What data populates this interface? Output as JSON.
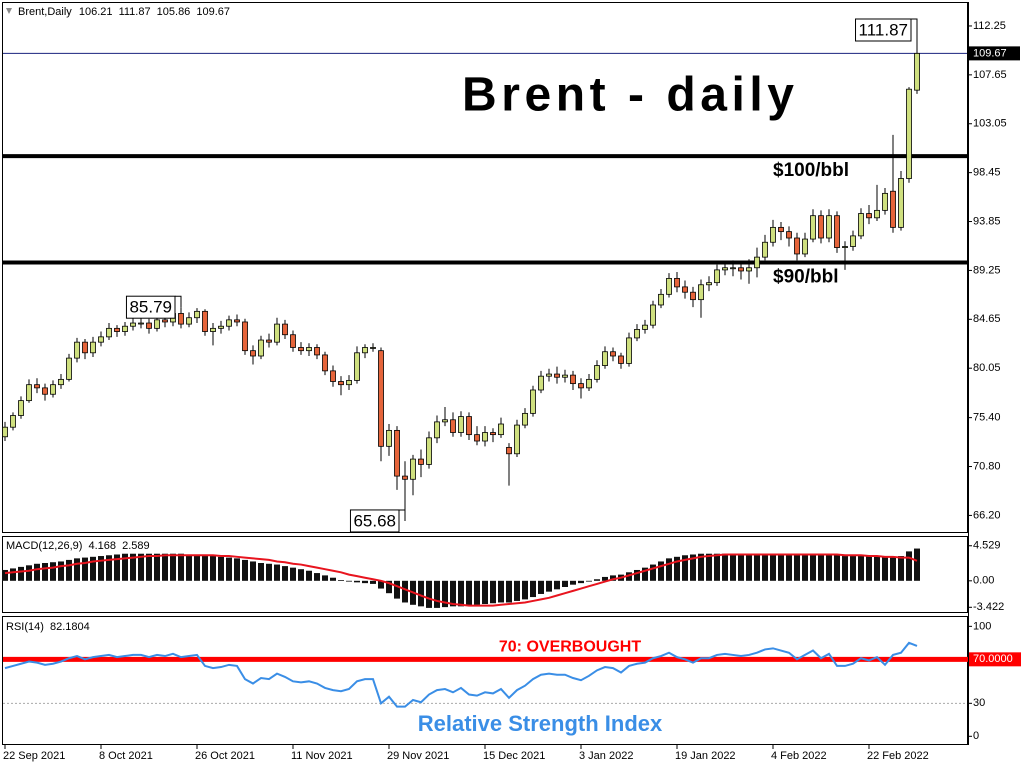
{
  "chart_data": [
    {
      "type": "candlestick",
      "title": "Brent - daily",
      "symbol": "Brent,Daily",
      "categories": [
        "22 Sep 2021",
        null,
        null,
        null,
        null,
        null,
        null,
        null,
        null,
        null,
        null,
        null,
        "8 Oct 2021",
        null,
        null,
        null,
        null,
        null,
        null,
        null,
        null,
        null,
        null,
        null,
        "26 Oct 2021",
        null,
        null,
        null,
        null,
        null,
        null,
        null,
        null,
        null,
        null,
        null,
        "11 Nov 2021",
        null,
        null,
        null,
        null,
        null,
        null,
        null,
        null,
        null,
        null,
        null,
        "29 Nov 2021",
        null,
        null,
        null,
        null,
        null,
        null,
        null,
        null,
        null,
        null,
        null,
        "15 Dec 2021",
        null,
        null,
        null,
        null,
        null,
        null,
        null,
        null,
        null,
        null,
        null,
        "3 Jan 2022",
        null,
        null,
        null,
        null,
        null,
        null,
        null,
        null,
        null,
        null,
        null,
        "19 Jan 2022",
        null,
        null,
        null,
        null,
        null,
        null,
        null,
        null,
        null,
        null,
        null,
        "4 Feb 2022",
        null,
        null,
        null,
        null,
        null,
        null,
        null,
        null,
        null,
        null,
        null,
        "22 Feb 2022",
        null,
        null,
        null,
        null,
        null,
        null
      ],
      "ohlc": [
        [
          73.6,
          75.0,
          73.2,
          74.5
        ],
        [
          74.5,
          75.9,
          74.2,
          75.6
        ],
        [
          75.6,
          77.4,
          75.3,
          77.0
        ],
        [
          77.0,
          79.0,
          76.8,
          78.5
        ],
        [
          78.5,
          79.1,
          77.7,
          78.2
        ],
        [
          78.2,
          78.6,
          77.0,
          77.6
        ],
        [
          77.6,
          78.9,
          77.3,
          78.5
        ],
        [
          78.5,
          79.5,
          78.1,
          79.0
        ],
        [
          79.0,
          81.4,
          78.8,
          81.0
        ],
        [
          81.0,
          82.9,
          80.6,
          82.5
        ],
        [
          82.5,
          82.8,
          80.9,
          81.5
        ],
        [
          81.5,
          83.0,
          81.1,
          82.5
        ],
        [
          82.5,
          83.5,
          82.1,
          83.0
        ],
        [
          83.0,
          84.3,
          82.7,
          83.8
        ],
        [
          83.8,
          84.1,
          83.0,
          83.5
        ],
        [
          83.5,
          84.4,
          83.1,
          84.0
        ],
        [
          84.0,
          84.8,
          83.6,
          84.3
        ],
        [
          84.3,
          84.9,
          83.8,
          84.3
        ],
        [
          84.3,
          84.7,
          83.3,
          83.8
        ],
        [
          83.8,
          85.1,
          83.5,
          84.6
        ],
        [
          84.6,
          85.0,
          83.9,
          84.4
        ],
        [
          84.4,
          85.6,
          84.0,
          85.2
        ],
        [
          85.2,
          85.79,
          83.8,
          84.2
        ],
        [
          84.2,
          85.3,
          83.9,
          84.8
        ],
        [
          84.8,
          85.7,
          84.3,
          85.4
        ],
        [
          85.4,
          85.6,
          83.1,
          83.5
        ],
        [
          83.5,
          84.3,
          82.2,
          83.8
        ],
        [
          83.8,
          84.5,
          83.3,
          84.0
        ],
        [
          84.0,
          85.0,
          83.6,
          84.6
        ],
        [
          84.6,
          85.1,
          84.0,
          84.4
        ],
        [
          84.4,
          84.7,
          81.3,
          81.7
        ],
        [
          81.7,
          82.2,
          80.4,
          81.2
        ],
        [
          81.2,
          83.1,
          80.9,
          82.7
        ],
        [
          82.7,
          83.3,
          82.0,
          82.5
        ],
        [
          82.5,
          84.8,
          82.2,
          84.2
        ],
        [
          84.2,
          84.6,
          82.8,
          83.2
        ],
        [
          83.2,
          83.6,
          81.6,
          82.0
        ],
        [
          82.0,
          82.5,
          81.3,
          81.7
        ],
        [
          81.7,
          82.4,
          81.2,
          82.0
        ],
        [
          82.0,
          82.3,
          80.9,
          81.3
        ],
        [
          81.3,
          81.6,
          79.4,
          79.8
        ],
        [
          79.8,
          80.3,
          78.3,
          78.8
        ],
        [
          78.8,
          79.3,
          77.5,
          78.5
        ],
        [
          78.5,
          79.4,
          78.0,
          78.9
        ],
        [
          78.9,
          82.1,
          78.6,
          81.5
        ],
        [
          81.5,
          82.3,
          81.0,
          82.0
        ],
        [
          82.0,
          82.4,
          81.6,
          82.0
        ],
        [
          81.7,
          82.0,
          71.3,
          72.7
        ],
        [
          72.7,
          74.8,
          71.8,
          74.2
        ],
        [
          74.2,
          74.6,
          68.6,
          69.9
        ],
        [
          69.9,
          71.3,
          65.68,
          69.6
        ],
        [
          69.6,
          71.9,
          68.1,
          71.5
        ],
        [
          71.5,
          72.4,
          69.8,
          71.0
        ],
        [
          71.0,
          74.1,
          70.6,
          73.5
        ],
        [
          73.5,
          75.6,
          73.0,
          75.0
        ],
        [
          75.0,
          76.4,
          74.6,
          75.2
        ],
        [
          75.2,
          75.9,
          73.6,
          74.0
        ],
        [
          74.0,
          76.0,
          73.6,
          75.5
        ],
        [
          75.5,
          75.9,
          73.3,
          73.8
        ],
        [
          73.8,
          74.6,
          72.8,
          73.2
        ],
        [
          73.2,
          74.6,
          72.7,
          74.0
        ],
        [
          74.0,
          74.4,
          73.1,
          73.8
        ],
        [
          73.8,
          75.4,
          73.5,
          74.8
        ],
        [
          72.6,
          73.0,
          69.0,
          72.0
        ],
        [
          72.0,
          75.2,
          71.7,
          74.7
        ],
        [
          74.7,
          76.3,
          74.4,
          75.8
        ],
        [
          75.8,
          78.4,
          75.5,
          78.0
        ],
        [
          78.0,
          79.8,
          77.7,
          79.3
        ],
        [
          79.3,
          80.0,
          78.8,
          79.5
        ],
        [
          79.5,
          80.2,
          78.6,
          79.2
        ],
        [
          79.2,
          79.9,
          78.7,
          79.4
        ],
        [
          79.4,
          79.8,
          78.0,
          78.6
        ],
        [
          78.6,
          79.1,
          77.2,
          78.2
        ],
        [
          78.2,
          79.5,
          77.9,
          79.0
        ],
        [
          79.0,
          80.8,
          78.7,
          80.3
        ],
        [
          80.3,
          82.1,
          80.0,
          81.6
        ],
        [
          81.6,
          82.0,
          80.7,
          81.2
        ],
        [
          81.2,
          81.5,
          80.0,
          80.5
        ],
        [
          80.5,
          83.4,
          80.2,
          82.9
        ],
        [
          82.9,
          84.2,
          82.6,
          83.7
        ],
        [
          83.7,
          84.6,
          83.3,
          84.1
        ],
        [
          84.1,
          86.4,
          83.8,
          86.0
        ],
        [
          86.0,
          87.5,
          85.7,
          87.0
        ],
        [
          87.0,
          89.0,
          86.7,
          88.5
        ],
        [
          88.5,
          89.1,
          87.2,
          87.7
        ],
        [
          87.7,
          88.3,
          86.6,
          87.2
        ],
        [
          87.2,
          87.7,
          85.8,
          86.5
        ],
        [
          86.5,
          88.4,
          84.8,
          87.9
        ],
        [
          87.9,
          88.7,
          87.3,
          88.1
        ],
        [
          88.1,
          89.8,
          87.8,
          89.3
        ],
        [
          89.3,
          90.0,
          88.8,
          89.5
        ],
        [
          89.5,
          90.2,
          88.7,
          89.5
        ],
        [
          89.5,
          89.9,
          88.4,
          89.2
        ],
        [
          89.2,
          90.3,
          88.0,
          89.5
        ],
        [
          89.5,
          91.4,
          88.6,
          90.5
        ],
        [
          90.5,
          92.6,
          90.2,
          91.9
        ],
        [
          91.9,
          94.0,
          91.5,
          93.3
        ],
        [
          93.3,
          93.8,
          92.1,
          92.9
        ],
        [
          92.9,
          93.4,
          91.5,
          92.3
        ],
        [
          92.3,
          92.8,
          90.2,
          90.8
        ],
        [
          90.8,
          92.8,
          90.5,
          92.2
        ],
        [
          92.2,
          95.0,
          91.9,
          94.4
        ],
        [
          94.4,
          94.9,
          91.8,
          92.3
        ],
        [
          92.3,
          95.0,
          91.9,
          94.4
        ],
        [
          94.4,
          94.8,
          90.9,
          91.4
        ],
        [
          91.4,
          92.0,
          89.3,
          91.5
        ],
        [
          91.5,
          93.0,
          91.1,
          92.5
        ],
        [
          92.5,
          95.1,
          92.2,
          94.6
        ],
        [
          94.6,
          95.4,
          93.6,
          94.2
        ],
        [
          94.2,
          97.3,
          93.9,
          94.9
        ],
        [
          94.9,
          97.0,
          94.5,
          96.5
        ],
        [
          96.7,
          102.0,
          92.8,
          93.3
        ],
        [
          93.3,
          98.6,
          93.0,
          97.9
        ],
        [
          97.9,
          106.5,
          97.5,
          106.3
        ],
        [
          106.21,
          111.87,
          105.86,
          109.67
        ]
      ],
      "bull_color": "#cfe07f",
      "bear_color": "#e5643a",
      "price_line_color": "#1a237e",
      "ylim": [
        64.64,
        114.41
      ],
      "yticks": [
        112.25,
        107.65,
        103.05,
        98.45,
        93.85,
        89.25,
        84.65,
        80.05,
        {
          "value": 75.4,
          "label": "75.40"
        },
        {
          "value": 70.8,
          "label": "70.80"
        },
        {
          "value": 66.2,
          "label": "66.20"
        }
      ],
      "levels": [
        {
          "value": 100,
          "label": "$100/bbl"
        },
        {
          "value": 90,
          "label": "$90/bbl"
        }
      ]
    },
    {
      "type": "macd",
      "title": "MACD(12,26,9)",
      "histogram": [
        1.4,
        1.6,
        1.8,
        2.0,
        2.2,
        2.3,
        2.4,
        2.5,
        2.7,
        2.9,
        3.0,
        3.1,
        3.2,
        3.3,
        3.4,
        3.5,
        3.5,
        3.5,
        3.5,
        3.5,
        3.5,
        3.5,
        3.5,
        3.4,
        3.4,
        3.3,
        3.2,
        3.1,
        3.0,
        2.9,
        2.7,
        2.5,
        2.3,
        2.2,
        2.1,
        1.9,
        1.7,
        1.5,
        1.3,
        1.0,
        0.7,
        0.4,
        0.1,
        -0.1,
        -0.2,
        -0.3,
        -0.4,
        -1.0,
        -1.6,
        -2.3,
        -2.8,
        -3.1,
        -3.3,
        -3.5,
        -3.5,
        -3.4,
        -3.3,
        -3.3,
        -3.2,
        -3.1,
        -3.0,
        -2.9,
        -2.8,
        -2.8,
        -2.6,
        -2.4,
        -2.1,
        -1.7,
        -1.4,
        -1.1,
        -0.8,
        -0.5,
        -0.3,
        -0.1,
        0.2,
        0.5,
        0.7,
        0.8,
        1.1,
        1.4,
        1.7,
        2.1,
        2.5,
        2.9,
        3.1,
        3.3,
        3.4,
        3.5,
        3.5,
        3.5,
        3.5,
        3.5,
        3.4,
        3.4,
        3.4,
        3.5,
        3.5,
        3.5,
        3.5,
        3.4,
        3.4,
        3.5,
        3.4,
        3.4,
        3.3,
        3.2,
        3.2,
        3.2,
        3.3,
        3.2,
        3.2,
        3.1,
        3.2,
        3.8,
        4.168
      ],
      "signal": [
        1.0,
        1.1,
        1.2,
        1.3,
        1.5,
        1.6,
        1.7,
        1.9,
        2.0,
        2.2,
        2.3,
        2.5,
        2.6,
        2.7,
        2.8,
        2.9,
        3.0,
        3.1,
        3.2,
        3.2,
        3.3,
        3.3,
        3.3,
        3.3,
        3.3,
        3.3,
        3.3,
        3.2,
        3.2,
        3.1,
        3.0,
        2.9,
        2.8,
        2.7,
        2.5,
        2.4,
        2.2,
        2.1,
        1.9,
        1.7,
        1.5,
        1.3,
        1.1,
        0.8,
        0.6,
        0.4,
        0.2,
        0.0,
        -0.3,
        -0.7,
        -1.1,
        -1.5,
        -1.9,
        -2.3,
        -2.6,
        -2.8,
        -3.0,
        -3.1,
        -3.2,
        -3.2,
        -3.2,
        -3.2,
        -3.1,
        -3.0,
        -2.9,
        -2.8,
        -2.6,
        -2.4,
        -2.2,
        -1.9,
        -1.6,
        -1.3,
        -1.0,
        -0.7,
        -0.4,
        -0.1,
        0.2,
        0.4,
        0.7,
        1.0,
        1.3,
        1.6,
        1.9,
        2.2,
        2.5,
        2.7,
        2.9,
        3.1,
        3.2,
        3.3,
        3.4,
        3.4,
        3.4,
        3.4,
        3.4,
        3.4,
        3.4,
        3.4,
        3.4,
        3.4,
        3.4,
        3.4,
        3.4,
        3.4,
        3.4,
        3.3,
        3.3,
        3.3,
        3.2,
        3.2,
        3.1,
        3.1,
        3.0,
        3.0,
        2.589
      ],
      "hist_color": "#111111",
      "signal_color": "#e8141e",
      "ylim": [
        -4.03,
        5.66
      ],
      "yticks": [
        4.529,
        {
          "value": 0,
          "label": "0.00"
        },
        -3.422
      ]
    },
    {
      "type": "line",
      "title": "RSI(14)",
      "values": [
        62,
        64,
        66,
        68,
        67,
        65,
        66,
        68,
        71,
        73,
        70,
        72,
        73,
        74,
        72,
        73,
        74,
        74,
        72,
        74,
        73,
        75,
        72,
        73,
        74,
        64,
        62,
        63,
        65,
        64,
        52,
        48,
        53,
        52,
        57,
        54,
        50,
        49,
        50,
        48,
        44,
        42,
        41,
        43,
        50,
        52,
        52,
        30,
        36,
        27,
        27,
        33,
        31,
        38,
        42,
        43,
        40,
        44,
        38,
        37,
        40,
        39,
        43,
        35,
        42,
        46,
        52,
        56,
        57,
        56,
        56,
        53,
        51,
        55,
        60,
        63,
        62,
        58,
        64,
        66,
        67,
        71,
        73,
        76,
        72,
        70,
        67,
        71,
        71,
        74,
        75,
        74,
        73,
        74,
        76,
        79,
        80,
        78,
        76,
        70,
        74,
        78,
        71,
        75,
        64,
        64,
        66,
        71,
        69,
        72,
        65,
        74,
        76,
        85,
        82.1804
      ],
      "color": "#3a8ee6",
      "ylim": [
        -7,
        108.5
      ],
      "yticks": [
        100,
        {
          "value": 70,
          "label": "70.0000"
        },
        30,
        0
      ],
      "levels": [
        {
          "value": 70,
          "label": "70: OVERBOUGHT",
          "color": "#ff0000"
        },
        {
          "value": 30,
          "color": "#aaaaaa"
        }
      ],
      "annotation": "Relative Strength Index"
    }
  ]
}
